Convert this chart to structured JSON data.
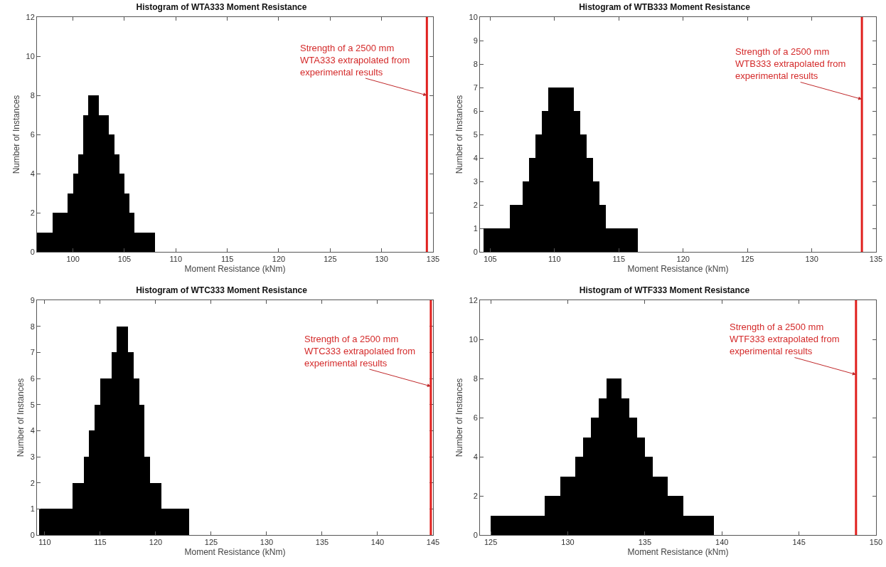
{
  "chart_data": [
    {
      "type": "histogram",
      "title": "Histogram of WTA333 Moment Resistance",
      "xlabel": "Moment Resistance (kNm)",
      "ylabel": "Number of Instances",
      "color": "#000000",
      "bins": [
        96.5,
        97,
        97.5,
        98,
        98.5,
        99,
        99.5,
        100,
        100.5,
        101,
        101.5,
        102,
        102.5,
        103,
        103.5,
        104,
        104.5,
        105,
        105.5,
        106,
        106.5,
        107,
        107.5,
        108
      ],
      "values": [
        1,
        1,
        1,
        2,
        2,
        2,
        3,
        4,
        5,
        7,
        8,
        8,
        7,
        7,
        6,
        5,
        4,
        3,
        2,
        1,
        1,
        1,
        1
      ],
      "xlim": [
        96.5,
        135
      ],
      "xticks": [
        100,
        105,
        110,
        115,
        120,
        125,
        130,
        135
      ],
      "ylim": [
        0,
        12
      ],
      "yticks": [
        0,
        2,
        4,
        6,
        8,
        10,
        12
      ],
      "grid": false,
      "ref_lines": [
        {
          "axis": "x",
          "value": 134.4,
          "color": "#e0201e"
        }
      ],
      "annotations": [
        {
          "text": "Strength of a 2500 mm\nWTA333 extrapolated from\nexperimental results",
          "x": 134.4,
          "y": 8
        }
      ]
    },
    {
      "type": "histogram",
      "title": "Histogram of WTB333 Moment Resistance",
      "xlabel": "Moment Resistance (kNm)",
      "ylabel": "Number of Instances",
      "color": "#000000",
      "bins": [
        104.5,
        105,
        105.5,
        106,
        106.5,
        107,
        107.5,
        108,
        108.5,
        109,
        109.5,
        110,
        110.5,
        111,
        111.5,
        112,
        112.5,
        113,
        113.5,
        114,
        114.5,
        115,
        115.5,
        116,
        116.5
      ],
      "values": [
        1,
        1,
        1,
        1,
        2,
        2,
        3,
        4,
        5,
        6,
        7,
        7,
        7,
        7,
        6,
        5,
        4,
        3,
        2,
        1,
        1,
        1,
        1,
        1
      ],
      "xlim": [
        104.2,
        135
      ],
      "xticks": [
        105,
        110,
        115,
        120,
        125,
        130,
        135
      ],
      "ylim": [
        0,
        10
      ],
      "yticks": [
        0,
        1,
        2,
        3,
        4,
        5,
        6,
        7,
        8,
        9,
        10
      ],
      "grid": false,
      "ref_lines": [
        {
          "axis": "x",
          "value": 133.9,
          "color": "#e0201e"
        }
      ],
      "annotations": [
        {
          "text": "Strength of a 2500 mm\nWTB333 extrapolated from\nexperimental results",
          "x": 133.9,
          "y": 6.5
        }
      ]
    },
    {
      "type": "histogram",
      "title": "Histogram of WTC333 Moment Resistance",
      "xlabel": "Moment Resistance (kNm)",
      "ylabel": "Number of Instances",
      "color": "#000000",
      "bins": [
        109.5,
        110,
        110.5,
        111,
        111.5,
        112,
        112.5,
        113,
        113.5,
        114,
        114.5,
        115,
        115.5,
        116,
        116.5,
        117,
        117.5,
        118,
        118.5,
        119,
        119.5,
        120,
        120.5,
        121,
        121.5,
        122,
        122.5,
        123
      ],
      "values": [
        1,
        1,
        1,
        1,
        1,
        1,
        2,
        2,
        3,
        4,
        5,
        6,
        6,
        7,
        8,
        8,
        7,
        6,
        5,
        3,
        2,
        2,
        1,
        1,
        1,
        1,
        1
      ],
      "xlim": [
        109.3,
        145
      ],
      "xticks": [
        110,
        115,
        120,
        125,
        130,
        135,
        140,
        145
      ],
      "ylim": [
        0,
        9
      ],
      "yticks": [
        0,
        1,
        2,
        3,
        4,
        5,
        6,
        7,
        8,
        9
      ],
      "grid": false,
      "ref_lines": [
        {
          "axis": "x",
          "value": 144.8,
          "color": "#e0201e"
        }
      ],
      "annotations": [
        {
          "text": "Strength of a 2500 mm\nWTC333 extrapolated from\nexperimental results",
          "x": 144.8,
          "y": 5.7
        }
      ]
    },
    {
      "type": "histogram",
      "title": "Histogram of WTF333 Moment Resistance",
      "xlabel": "Moment Resistance (kNm)",
      "ylabel": "Number of Instances",
      "color": "#000000",
      "bins": [
        125,
        125.5,
        126,
        126.5,
        127,
        127.5,
        128,
        128.5,
        129,
        129.5,
        130,
        130.5,
        131,
        131.5,
        132,
        132.5,
        133,
        133.5,
        134,
        134.5,
        135,
        135.5,
        136,
        136.5,
        137,
        137.5,
        138,
        138.5,
        139,
        139.5
      ],
      "values": [
        1,
        1,
        1,
        1,
        1,
        1,
        1,
        2,
        2,
        3,
        3,
        4,
        5,
        6,
        7,
        8,
        8,
        7,
        6,
        5,
        4,
        3,
        3,
        2,
        2,
        1,
        1,
        1,
        1
      ],
      "xlim": [
        124.3,
        150
      ],
      "xticks": [
        125,
        130,
        135,
        140,
        145,
        150
      ],
      "ylim": [
        0,
        12
      ],
      "yticks": [
        0,
        2,
        4,
        6,
        8,
        10,
        12
      ],
      "grid": false,
      "ref_lines": [
        {
          "axis": "x",
          "value": 148.7,
          "color": "#e0201e"
        }
      ],
      "annotations": [
        {
          "text": "Strength of a 2500 mm\nWTF333 extrapolated from\nexperimental results",
          "x": 148.7,
          "y": 8.2
        }
      ]
    }
  ]
}
